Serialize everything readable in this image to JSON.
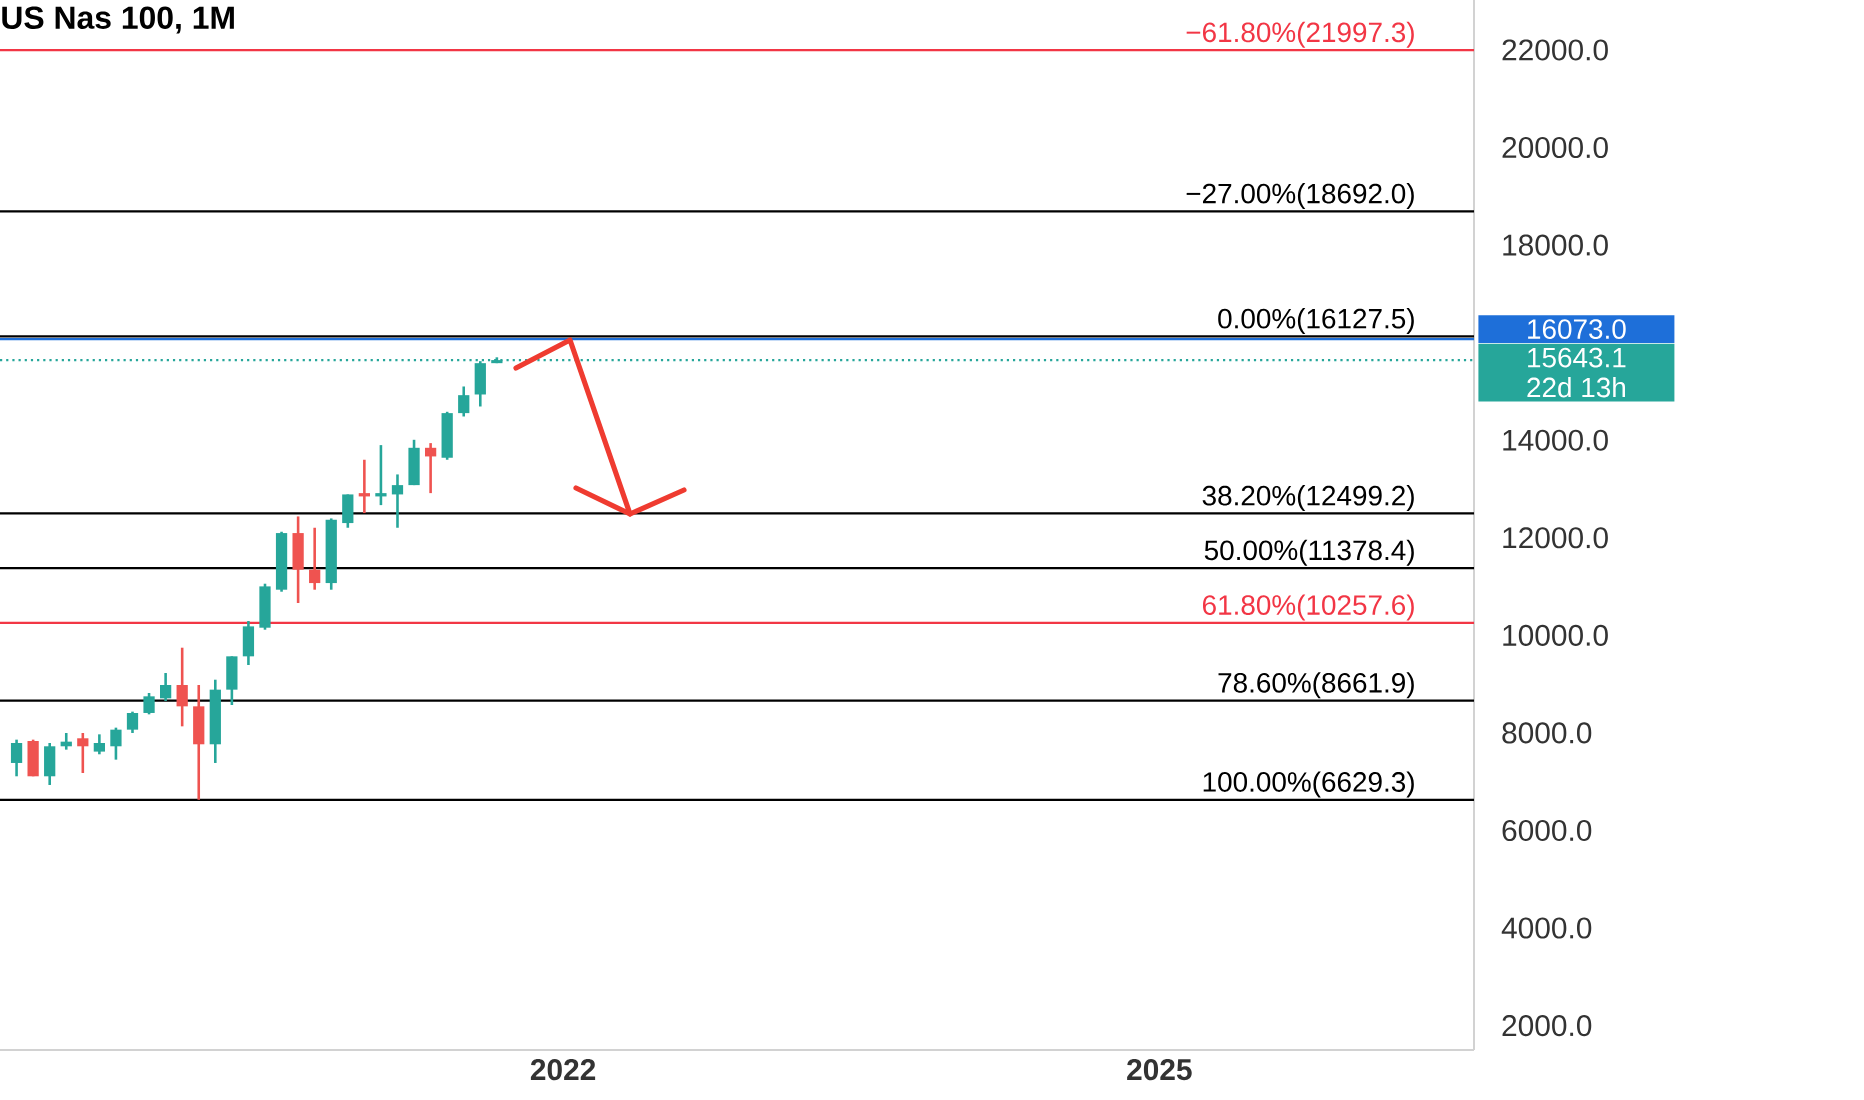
{
  "chart_data": {
    "type": "candlestick",
    "title": "US Nas 100, 1M",
    "x": [
      "2019-04",
      "2019-05",
      "2019-06",
      "2019-07",
      "2019-08",
      "2019-09",
      "2019-10",
      "2019-11",
      "2019-12",
      "2020-01",
      "2020-02",
      "2020-03",
      "2020-04",
      "2020-05",
      "2020-06",
      "2020-07",
      "2020-08",
      "2020-09",
      "2020-10",
      "2020-11",
      "2020-12",
      "2021-01",
      "2021-02",
      "2021-03",
      "2021-04",
      "2021-05",
      "2021-06",
      "2021-07",
      "2021-08",
      "2021-09"
    ],
    "ohlc": [
      [
        7384,
        7862,
        7111,
        7794
      ],
      [
        7835,
        7862,
        7111,
        7111
      ],
      [
        7111,
        7794,
        6933,
        7726
      ],
      [
        7726,
        7999,
        7657,
        7821
      ],
      [
        7890,
        7999,
        7179,
        7726
      ],
      [
        7617,
        7971,
        7562,
        7794
      ],
      [
        7726,
        8108,
        7452,
        8067
      ],
      [
        8067,
        8436,
        7999,
        8409
      ],
      [
        8409,
        8818,
        8381,
        8750
      ],
      [
        8709,
        9228,
        8654,
        8982
      ],
      [
        8982,
        9747,
        8135,
        8545
      ],
      [
        8545,
        8982,
        6629.3,
        7767
      ],
      [
        7767,
        9091,
        7384,
        8887
      ],
      [
        8887,
        9570,
        8572,
        9570
      ],
      [
        9570,
        10294,
        9392,
        10184
      ],
      [
        10157,
        11059,
        10116,
        11004
      ],
      [
        10936,
        12124,
        10895,
        12097
      ],
      [
        12097,
        12438,
        10663,
        11346
      ],
      [
        11346,
        12206,
        10936,
        11072
      ],
      [
        11072,
        12397,
        10936,
        12370
      ],
      [
        12302,
        12889,
        12206,
        12889
      ],
      [
        12916,
        13600,
        12507,
        12848
      ],
      [
        12848,
        13900,
        12670,
        12916
      ],
      [
        12889,
        13299,
        12206,
        13080
      ],
      [
        13080,
        14009,
        13080,
        13845
      ],
      [
        13845,
        13941,
        12916,
        13668
      ],
      [
        13641,
        14583,
        13600,
        14556
      ],
      [
        14556,
        15102,
        14487,
        14924
      ],
      [
        14938,
        15621,
        14692,
        15580
      ],
      [
        15580,
        15700,
        15580,
        15643.1
      ]
    ],
    "colors": [
      "#26a69a",
      "#ef5350",
      "#26a69a",
      "#26a69a",
      "#ef5350",
      "#26a69a",
      "#26a69a",
      "#26a69a",
      "#26a69a",
      "#26a69a",
      "#ef5350",
      "#ef5350",
      "#26a69a",
      "#26a69a",
      "#26a69a",
      "#26a69a",
      "#26a69a",
      "#ef5350",
      "#ef5350",
      "#26a69a",
      "#26a69a",
      "#ef5350",
      "#26a69a",
      "#26a69a",
      "#26a69a",
      "#ef5350",
      "#26a69a",
      "#26a69a",
      "#26a69a",
      "#26a69a"
    ],
    "xlim": [
      "2019-03",
      "2026-08"
    ],
    "xticks": [
      {
        "value": "2022-01",
        "label": "2022"
      },
      {
        "value": "2025-01",
        "label": "2025"
      }
    ],
    "ylim": [
      1500,
      23025
    ],
    "yticks": [
      {
        "value": 2000,
        "label": "2000.0"
      },
      {
        "value": 4000,
        "label": "4000.0"
      },
      {
        "value": 6000,
        "label": "6000.0"
      },
      {
        "value": 8000,
        "label": "8000.0"
      },
      {
        "value": 10000,
        "label": "10000.0"
      },
      {
        "value": 12000,
        "label": "12000.0"
      },
      {
        "value": 14000,
        "label": "14000.0"
      },
      {
        "value": 18000,
        "label": "18000.0"
      },
      {
        "value": 20000,
        "label": "20000.0"
      },
      {
        "value": 22000,
        "label": "22000.0"
      }
    ],
    "ref_lines": [
      {
        "axis": "y",
        "value": 21997.3,
        "label": "−61.80%(21997.3)",
        "color": "#f23645"
      },
      {
        "axis": "y",
        "value": 18692.0,
        "label": "−27.00%(18692.0)",
        "color": "#000000"
      },
      {
        "axis": "y",
        "value": 16127.5,
        "label": "0.00%(16127.5)",
        "color": "#000000"
      },
      {
        "axis": "y",
        "value": 12499.2,
        "label": "38.20%(12499.2)",
        "color": "#000000"
      },
      {
        "axis": "y",
        "value": 11378.4,
        "label": "50.00%(11378.4)",
        "color": "#000000"
      },
      {
        "axis": "y",
        "value": 10257.6,
        "label": "61.80%(10257.6)",
        "color": "#f23645"
      },
      {
        "axis": "y",
        "value": 8661.9,
        "label": "78.60%(8661.9)",
        "color": "#000000"
      },
      {
        "axis": "y",
        "value": 6629.3,
        "label": "100.00%(6629.3)",
        "color": "#000000"
      },
      {
        "axis": "y",
        "value": 16073.0,
        "color": "#1e6fd9"
      },
      {
        "axis": "y",
        "value": 15643.1,
        "color": "#26a69a",
        "line_style": "dotted"
      }
    ],
    "annotations": [
      "16073.0",
      "15643.1",
      "22d 13h"
    ],
    "grid": false
  }
}
